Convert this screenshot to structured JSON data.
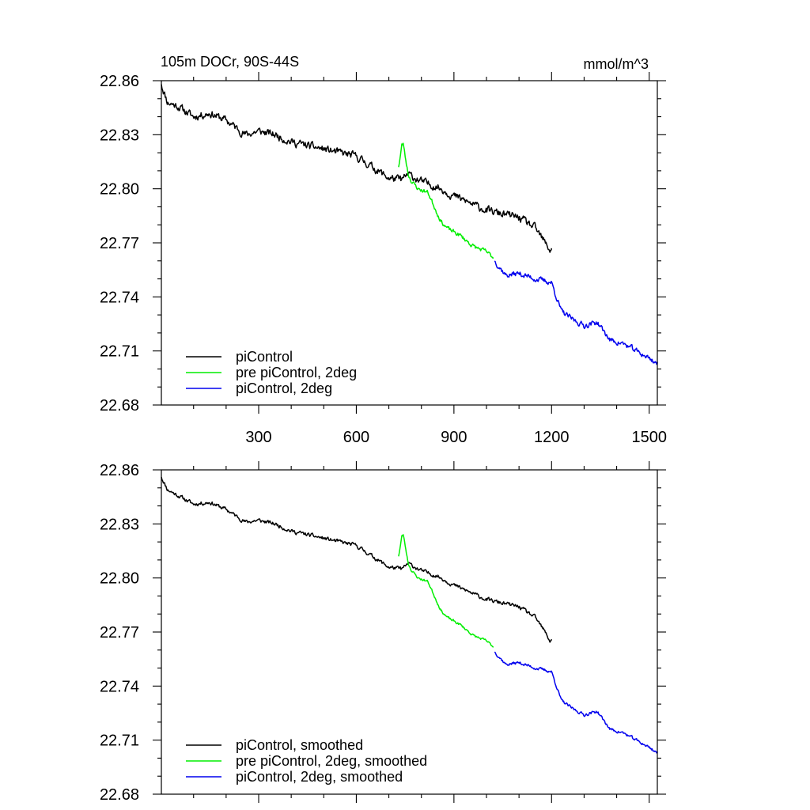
{
  "colors": {
    "piControl": "#000000",
    "pre_piControl_2deg": "#00ee00",
    "piControl_2deg": "#0000ee"
  },
  "chart_data": [
    {
      "type": "line",
      "title_left": "105m DOCr, 90S-44S",
      "title_right": "mmol/m^3",
      "xlim": [
        1,
        1525
      ],
      "ylim": [
        22.68,
        22.86
      ],
      "xticks": [
        300,
        600,
        900,
        1200,
        1500
      ],
      "xtick_labels": [
        "300",
        "600",
        "900",
        "1200",
        "1500"
      ],
      "show_xtick_labels": true,
      "yticks": [
        22.68,
        22.71,
        22.74,
        22.77,
        22.8,
        22.83,
        22.86
      ],
      "ytick_labels": [
        "22.68",
        "22.71",
        "22.74",
        "22.77",
        "22.80",
        "22.83",
        "22.86"
      ],
      "legend_position": "bottom-left",
      "series": [
        {
          "name": "piControl",
          "color_key": "piControl",
          "noise": 0.0035,
          "seed": 11,
          "x": [
            1,
            20,
            50,
            100,
            150,
            200,
            260,
            300,
            350,
            400,
            450,
            500,
            550,
            600,
            650,
            700,
            740,
            760,
            800,
            850,
            900,
            950,
            1000,
            1050,
            1100,
            1150,
            1180,
            1195,
            1200
          ],
          "y": [
            22.858,
            22.848,
            22.846,
            22.84,
            22.842,
            22.838,
            22.83,
            22.832,
            22.83,
            22.826,
            22.824,
            22.822,
            22.82,
            22.818,
            22.812,
            22.806,
            22.805,
            22.808,
            22.804,
            22.801,
            22.796,
            22.792,
            22.788,
            22.786,
            22.784,
            22.778,
            22.77,
            22.766,
            22.767
          ]
        },
        {
          "name": "pre piControl, 2deg",
          "color_key": "pre_piControl_2deg",
          "noise": 0.002,
          "seed": 23,
          "x": [
            730,
            740,
            745,
            750,
            760,
            770,
            790,
            820,
            840,
            860,
            880,
            920,
            960,
            1000,
            1020
          ],
          "y": [
            22.812,
            22.824,
            22.825,
            22.818,
            22.808,
            22.804,
            22.8,
            22.798,
            22.79,
            22.782,
            22.778,
            22.774,
            22.768,
            22.765,
            22.762
          ]
        },
        {
          "name": "piControl, 2deg",
          "color_key": "piControl_2deg",
          "noise": 0.0025,
          "seed": 37,
          "x": [
            1025,
            1060,
            1100,
            1150,
            1200,
            1230,
            1260,
            1300,
            1340,
            1380,
            1420,
            1460,
            1500,
            1525
          ],
          "y": [
            22.76,
            22.752,
            22.753,
            22.75,
            22.748,
            22.732,
            22.728,
            22.724,
            22.726,
            22.716,
            22.714,
            22.71,
            22.706,
            22.703
          ]
        }
      ]
    },
    {
      "type": "line",
      "title_left": "",
      "title_right": "",
      "xlim": [
        1,
        1525
      ],
      "ylim": [
        22.68,
        22.86
      ],
      "xticks": [
        300,
        600,
        900,
        1200,
        1500
      ],
      "xtick_labels": [],
      "show_xtick_labels": false,
      "yticks": [
        22.68,
        22.71,
        22.74,
        22.77,
        22.8,
        22.83,
        22.86
      ],
      "ytick_labels": [
        "22.68",
        "22.71",
        "22.74",
        "22.77",
        "22.80",
        "22.83",
        "22.86"
      ],
      "legend_position": "bottom-left",
      "series": [
        {
          "name": "piControl, smoothed",
          "color_key": "piControl",
          "noise": 0.0018,
          "seed": 11,
          "x": [
            1,
            20,
            50,
            100,
            150,
            200,
            260,
            300,
            350,
            400,
            450,
            500,
            550,
            600,
            650,
            700,
            740,
            760,
            800,
            850,
            900,
            950,
            1000,
            1050,
            1100,
            1150,
            1180,
            1195,
            1200
          ],
          "y": [
            22.856,
            22.849,
            22.846,
            22.841,
            22.842,
            22.838,
            22.831,
            22.832,
            22.83,
            22.826,
            22.824,
            22.822,
            22.82,
            22.818,
            22.812,
            22.806,
            22.805,
            22.808,
            22.804,
            22.801,
            22.796,
            22.792,
            22.788,
            22.786,
            22.784,
            22.778,
            22.77,
            22.765,
            22.766
          ]
        },
        {
          "name": "pre piControl, 2deg, smoothed",
          "color_key": "pre_piControl_2deg",
          "noise": 0.0012,
          "seed": 23,
          "x": [
            730,
            740,
            745,
            750,
            760,
            770,
            790,
            820,
            840,
            860,
            880,
            920,
            960,
            1000,
            1020
          ],
          "y": [
            22.812,
            22.823,
            22.824,
            22.818,
            22.808,
            22.804,
            22.8,
            22.798,
            22.79,
            22.782,
            22.778,
            22.774,
            22.768,
            22.765,
            22.762
          ]
        },
        {
          "name": "piControl, 2deg, smoothed",
          "color_key": "piControl_2deg",
          "noise": 0.0014,
          "seed": 37,
          "x": [
            1025,
            1060,
            1100,
            1150,
            1200,
            1230,
            1260,
            1300,
            1340,
            1380,
            1420,
            1460,
            1500,
            1525
          ],
          "y": [
            22.759,
            22.752,
            22.753,
            22.75,
            22.748,
            22.732,
            22.728,
            22.724,
            22.726,
            22.716,
            22.714,
            22.71,
            22.706,
            22.703
          ]
        }
      ]
    }
  ]
}
